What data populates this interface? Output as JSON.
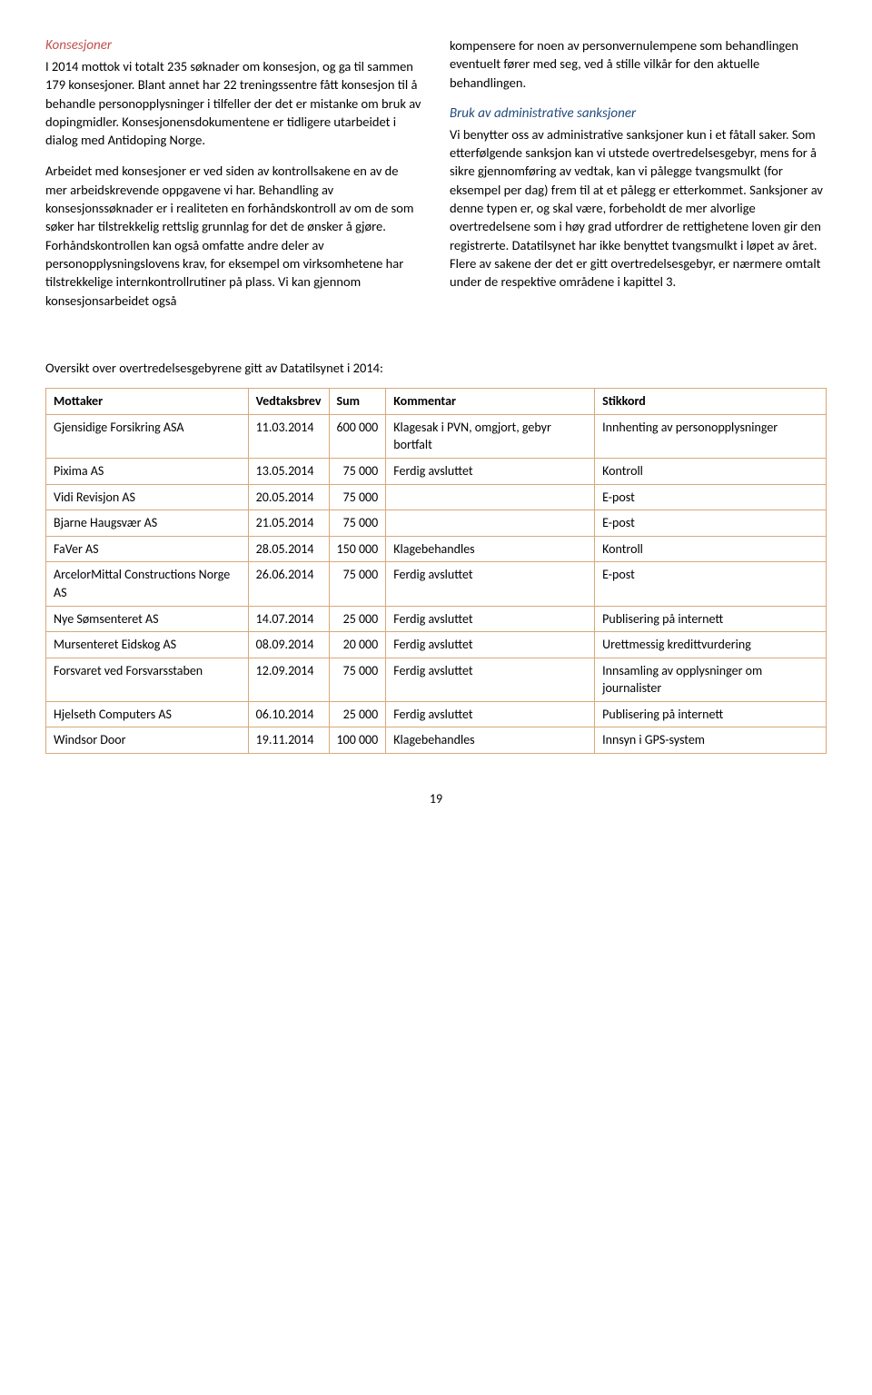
{
  "left": {
    "title": "Konsesjoner",
    "para1": "I 2014 mottok vi totalt 235 søknader om konsesjon, og ga til sammen 179 konsesjoner. Blant annet har 22 treningssentre fått konsesjon til å behandle personopplysninger i tilfeller der det er mistanke om bruk av dopingmidler. Konsesjonensdokumentene er tidligere utarbeidet i dialog med Antidoping Norge.",
    "para2": "Arbeidet med konsesjoner er ved siden av kontrollsakene en av de mer arbeidskrevende oppgavene vi har. Behandling av konsesjonssøknader er i realiteten en forhåndskontroll av om de som søker har tilstrekkelig rettslig grunnlag for det de ønsker å gjøre. Forhåndskontrollen kan også omfatte andre deler av personopplysningslovens krav, for eksempel om virksomhetene har tilstrekkelige internkontrollrutiner på plass. Vi kan gjennom konsesjonsarbeidet også"
  },
  "right": {
    "para1": "kompensere for noen av personvernulempene som behandlingen eventuelt fører med seg, ved å stille vilkår for den aktuelle behandlingen.",
    "title": "Bruk av administrative sanksjoner",
    "para2": "Vi benytter oss av administrative sanksjoner kun i et fåtall saker. Som etterfølgende sanksjon kan vi utstede overtredelsesgebyr, mens for å sikre gjennomføring av vedtak, kan vi pålegge tvangsmulkt (for eksempel per dag) frem til at et pålegg er etterkommet. Sanksjoner av denne typen er, og skal være, forbeholdt de mer alvorlige overtredelsene som i høy grad utfordrer de rettighetene loven gir den registrerte. Datatilsynet har ikke benyttet tvangsmulkt i løpet av året. Flere av sakene der det er gitt overtredelsesgebyr, er nærmere omtalt under de respektive områdene i kapittel 3."
  },
  "table_intro": "Oversikt over overtredelsesgebyrene gitt av Datatilsynet i 2014:",
  "table": {
    "headers": [
      "Mottaker",
      "Vedtaksbrev",
      "Sum",
      "Kommentar",
      "Stikkord"
    ],
    "rows": [
      [
        "Gjensidige Forsikring ASA",
        "11.03.2014",
        "600 000",
        "Klagesak i PVN, omgjort, gebyr bortfalt",
        "Innhenting av personopplysninger"
      ],
      [
        "Pixima AS",
        "13.05.2014",
        "75 000",
        "Ferdig avsluttet",
        "Kontroll"
      ],
      [
        "Vidi Revisjon AS",
        "20.05.2014",
        "75 000",
        "",
        "E-post"
      ],
      [
        "Bjarne Haugsvær AS",
        "21.05.2014",
        "75 000",
        "",
        "E-post"
      ],
      [
        "FaVer AS",
        "28.05.2014",
        "150 000",
        "Klagebehandles",
        "Kontroll"
      ],
      [
        "ArcelorMittal Constructions Norge AS",
        "26.06.2014",
        "75 000",
        "Ferdig avsluttet",
        "E-post"
      ],
      [
        "Nye Sømsenteret AS",
        "14.07.2014",
        "25 000",
        "Ferdig avsluttet",
        "Publisering på internett"
      ],
      [
        "Mursenteret Eidskog AS",
        "08.09.2014",
        "20 000",
        "Ferdig avsluttet",
        "Urettmessig kredittvurdering"
      ],
      [
        "Forsvaret ved Forsvarsstaben",
        "12.09.2014",
        "75 000",
        "Ferdig avsluttet",
        "Innsamling av opplysninger om journalister"
      ],
      [
        "Hjelseth Computers AS",
        "06.10.2014",
        "25 000",
        "Ferdig avsluttet",
        "Publisering på internett"
      ],
      [
        "Windsor Door",
        "19.11.2014",
        "100 000",
        "Klagebehandles",
        "Innsyn i GPS-system"
      ]
    ]
  },
  "page_number": "19",
  "colors": {
    "red": "#c0504d",
    "blue": "#1f497d",
    "border": "#d9a87a"
  }
}
